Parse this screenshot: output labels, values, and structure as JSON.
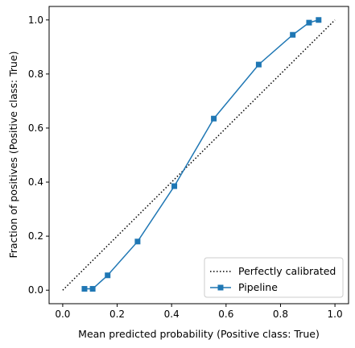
{
  "chart_data": {
    "type": "line",
    "xlabel": "Mean predicted probability (Positive class: True)",
    "ylabel": "Fraction of positives (Positive class: True)",
    "xlim": [
      -0.05,
      1.05
    ],
    "ylim": [
      -0.05,
      1.05
    ],
    "xticks": [
      "0.0",
      "0.2",
      "0.4",
      "0.6",
      "0.8",
      "1.0"
    ],
    "yticks": [
      "0.0",
      "0.2",
      "0.4",
      "0.6",
      "0.8",
      "1.0"
    ],
    "grid": false,
    "legend_position": "lower-right",
    "series": [
      {
        "name": "Perfectly calibrated",
        "style": "dotted",
        "color": "#000000",
        "x": [
          0.0,
          1.0
        ],
        "y": [
          0.0,
          1.0
        ]
      },
      {
        "name": "Pipeline",
        "style": "solid",
        "marker": "square",
        "color": "#1f77b4",
        "x": [
          0.08,
          0.11,
          0.165,
          0.275,
          0.41,
          0.555,
          0.72,
          0.845,
          0.905,
          0.94
        ],
        "y": [
          0.005,
          0.005,
          0.055,
          0.18,
          0.385,
          0.635,
          0.835,
          0.945,
          0.99,
          1.0
        ]
      }
    ]
  }
}
